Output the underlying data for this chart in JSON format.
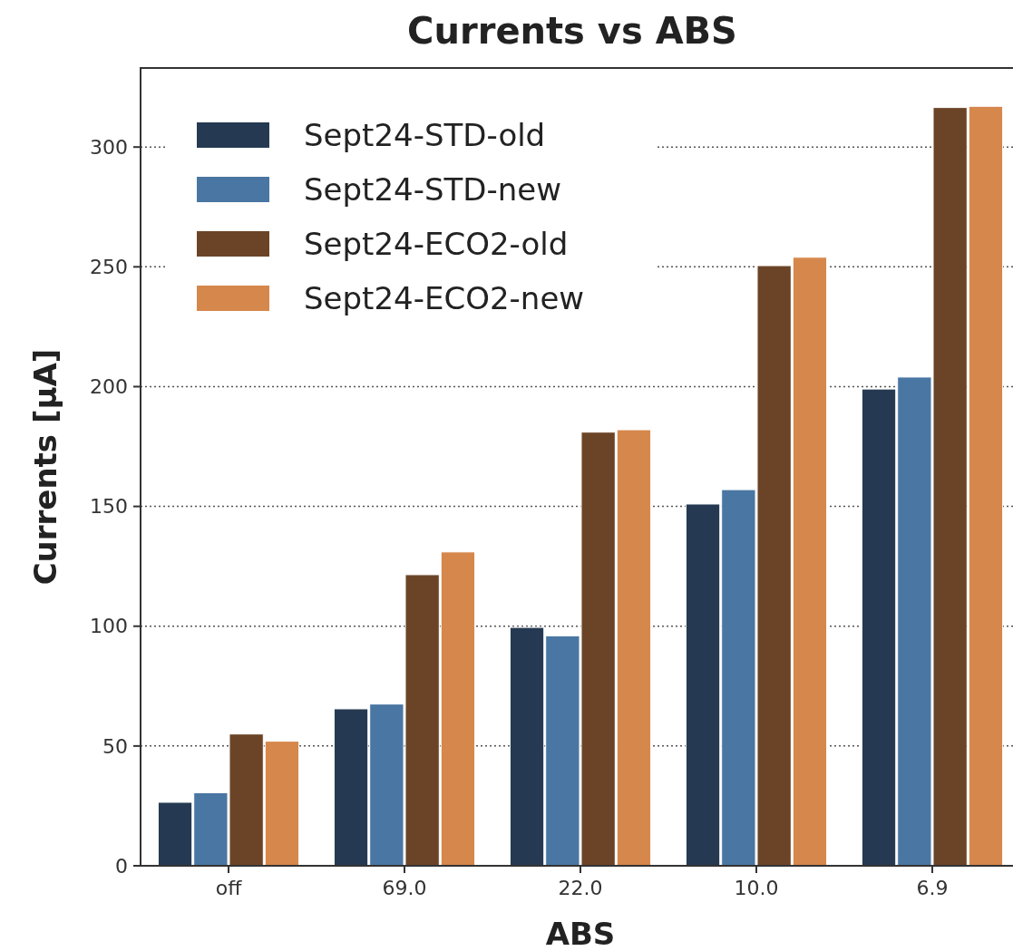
{
  "chart_data": {
    "type": "bar",
    "title": "Currents vs ABS",
    "xlabel": "ABS",
    "ylabel": "Currents [μA]",
    "categories": [
      "off",
      "69.0",
      "22.0",
      "10.0",
      "6.9"
    ],
    "series": [
      {
        "name": "Sept24-STD-old",
        "color": "#253a52",
        "values": [
          26.5,
          65.5,
          99.5,
          151,
          199
        ]
      },
      {
        "name": "Sept24-STD-new",
        "color": "#4a76a3",
        "values": [
          30.5,
          67.5,
          96,
          157,
          204
        ]
      },
      {
        "name": "Sept24-ECO2-old",
        "color": "#6b4427",
        "values": [
          55,
          121.5,
          181,
          250.5,
          316.5
        ]
      },
      {
        "name": "Sept24-ECO2-new",
        "color": "#d6874c",
        "values": [
          52,
          131,
          182,
          254,
          317
        ]
      }
    ],
    "ylim": [
      0,
      333
    ],
    "yticks": [
      0,
      50,
      100,
      150,
      200,
      250,
      300
    ],
    "grid": "y",
    "legend": "top left"
  }
}
